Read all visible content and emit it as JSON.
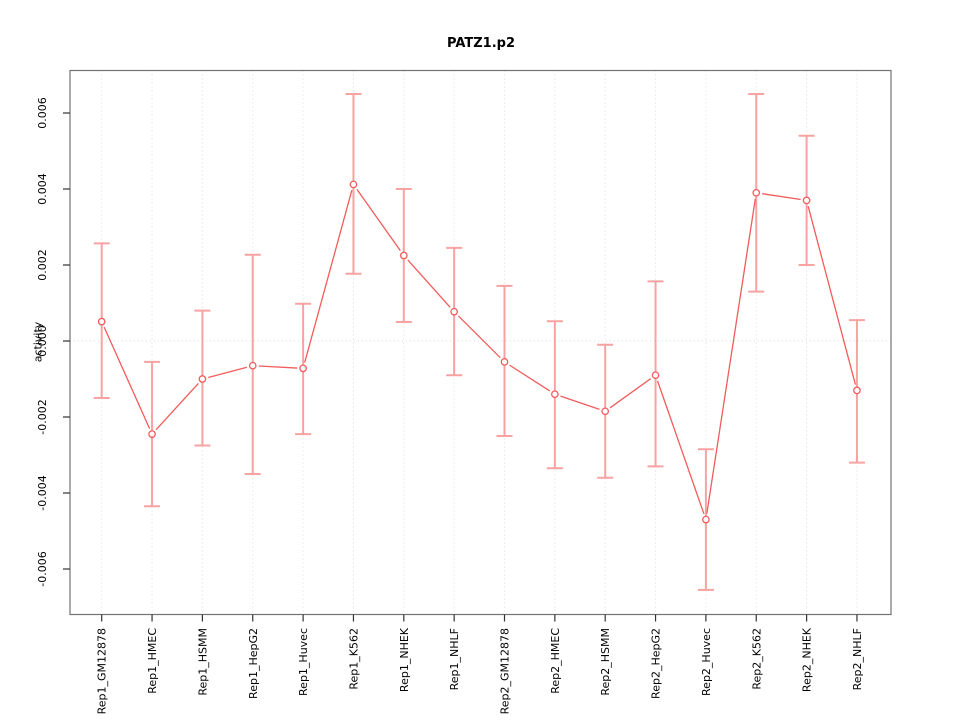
{
  "title": "PATZ1.p2",
  "chart_data": {
    "type": "line",
    "title": "PATZ1.p2",
    "xlabel": "",
    "ylabel": "activity",
    "ylim": [
      -0.0072,
      0.0072
    ],
    "yticks": [
      -0.006,
      -0.004,
      -0.002,
      0.0,
      0.002,
      0.004,
      0.006
    ],
    "ytick_labels": [
      "-0.006",
      "-0.004",
      "-0.002",
      "0.000",
      "0.002",
      "0.004",
      "0.006"
    ],
    "grid": "vertical dotted line at each category; horizontal dotted line at y=0",
    "legend_position": "none",
    "marker": "open-circle",
    "categories": [
      "Rep1_GM12878",
      "Rep1_HMEC",
      "Rep1_HSMM",
      "Rep1_HepG2",
      "Rep1_Huvec",
      "Rep1_K562",
      "Rep1_NHEK",
      "Rep1_NHLF",
      "Rep2_GM12878",
      "Rep2_HMEC",
      "Rep2_HSMM",
      "Rep2_HepG2",
      "Rep2_Huvec",
      "Rep2_K562",
      "Rep2_NHEK",
      "Rep2_NHLF"
    ],
    "series": [
      {
        "name": "activity",
        "values": [
          0.00051,
          -0.00245,
          -0.001,
          -0.00065,
          -0.00072,
          0.00412,
          0.00225,
          0.00077,
          -0.00055,
          -0.0014,
          -0.00185,
          -0.0009,
          -0.0047,
          0.0039,
          0.0037,
          -0.0013
        ],
        "err_low": [
          -0.0015,
          -0.00435,
          -0.00275,
          -0.0035,
          -0.00245,
          0.00177,
          0.0005,
          -0.0009,
          -0.0025,
          -0.00335,
          -0.0036,
          -0.0033,
          -0.00655,
          0.0013,
          0.002,
          -0.0032
        ],
        "err_high": [
          0.00257,
          -0.00055,
          0.0008,
          0.00227,
          0.00098,
          0.0065,
          0.004,
          0.00245,
          0.00145,
          0.00052,
          -0.0001,
          0.00157,
          -0.00285,
          0.0065,
          0.0054,
          0.00055
        ]
      }
    ],
    "colors": {
      "line": "#f25c5c",
      "marker": "#f25c5c",
      "error_bar": "#f8a2a2",
      "grid": "#dcdcdc",
      "frame": "#737373",
      "tick": "#333333",
      "text": "#000000"
    }
  }
}
